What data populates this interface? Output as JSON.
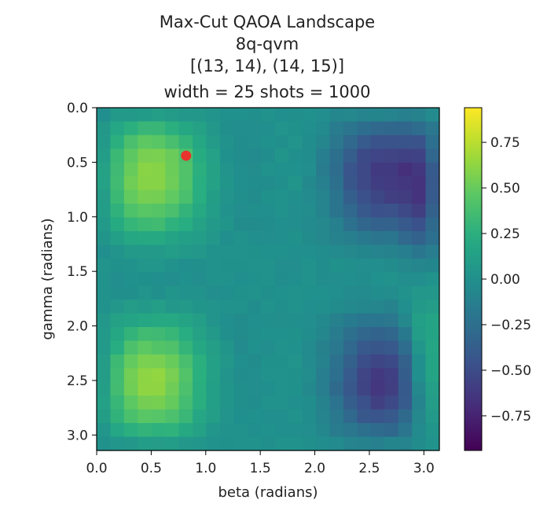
{
  "chart_data": {
    "type": "heatmap",
    "title": [
      "Max-Cut QAOA Landscape",
      "8q-qvm",
      "[(13, 14), (14, 15)]",
      "width = 25 shots = 1000"
    ],
    "xlabel": "beta (radians)",
    "ylabel": "gamma (radians)",
    "xlim": [
      0,
      3.14159
    ],
    "ylim": [
      3.14159,
      0
    ],
    "xticks": [
      0.0,
      0.5,
      1.0,
      1.5,
      2.0,
      2.5,
      3.0
    ],
    "xtick_labels": [
      "0.0",
      "0.5",
      "1.0",
      "1.5",
      "2.0",
      "2.5",
      "3.0"
    ],
    "yticks": [
      0.0,
      0.5,
      1.0,
      1.5,
      2.0,
      2.5,
      3.0
    ],
    "ytick_labels": [
      "0.0",
      "0.5",
      "1.0",
      "1.5",
      "2.0",
      "2.5",
      "3.0"
    ],
    "grid": false,
    "colormap": "viridis",
    "color_range": [
      -0.94,
      0.94
    ],
    "colorbar_ticks": [
      0.75,
      0.5,
      0.25,
      0.0,
      -0.25,
      -0.5,
      -0.75
    ],
    "colorbar_tick_labels": [
      "0.75",
      "0.50",
      "0.25",
      "0.00",
      "−0.25",
      "−0.50",
      "−0.75"
    ],
    "grid_resolution": [
      25,
      25
    ],
    "highlight_point": {
      "beta": 0.82,
      "gamma": 0.44,
      "color": "#e8322c"
    }
  }
}
